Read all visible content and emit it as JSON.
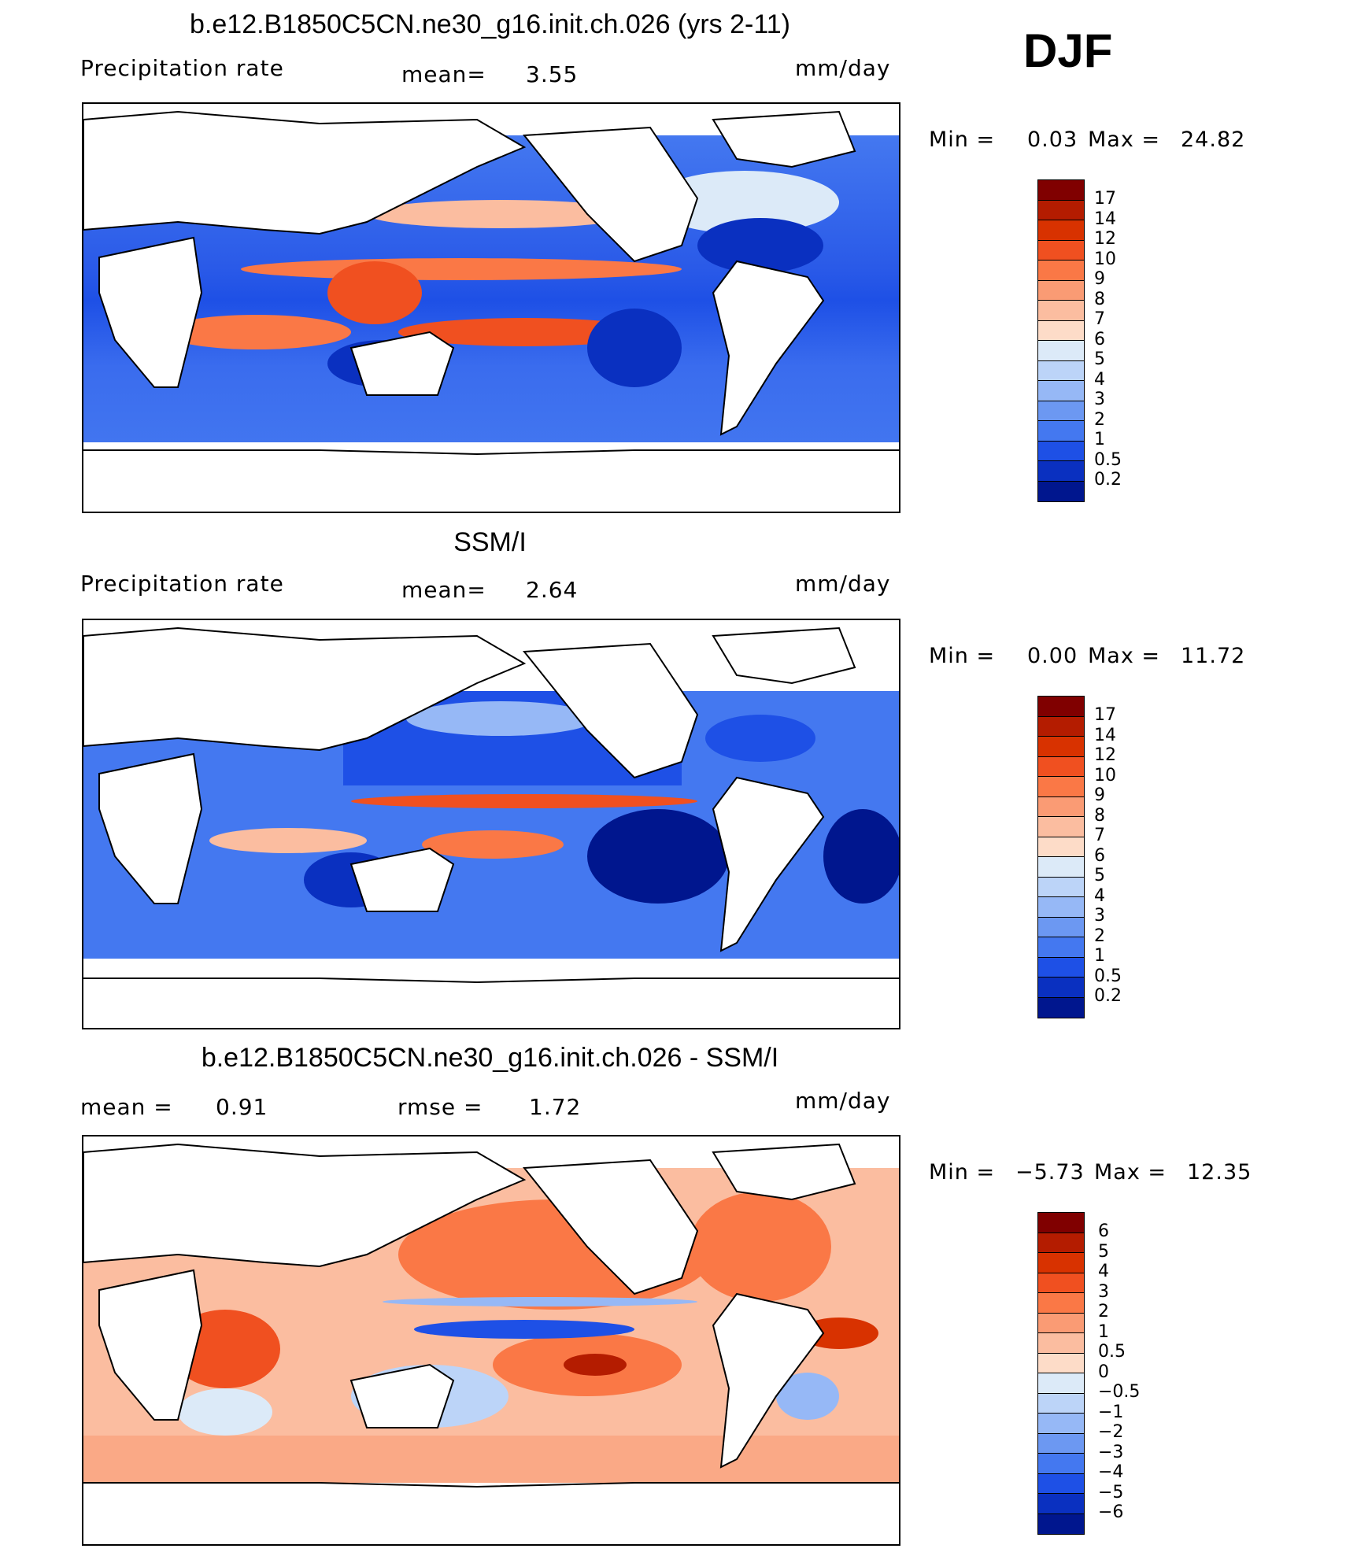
{
  "season": "DJF",
  "panels": [
    {
      "title": "b.e12.B1850C5CN.ne30_g16.init.ch.026 (yrs 2-11)",
      "left_label": "Precipitation  rate",
      "mean_label": "mean=",
      "mean_value": "3.55",
      "units": "mm/day",
      "min_label": "Min  =",
      "min_value": "0.03",
      "max_label": "Max  =",
      "max_value": "24.82",
      "colorbar": {
        "labels": [
          "17",
          "14",
          "12",
          "10",
          "9",
          "8",
          "7",
          "6",
          "5",
          "4",
          "3",
          "2",
          "1",
          "0.5",
          "0.2"
        ],
        "colors": [
          "#800000",
          "#b41c00",
          "#d83200",
          "#f05020",
          "#fa7846",
          "#fa9b74",
          "#fbbda0",
          "#fddcc8",
          "#dceaf8",
          "#bcd4f8",
          "#96b8f6",
          "#6c98f2",
          "#4478f0",
          "#1e50e6",
          "#0a30c0",
          "#00168e"
        ]
      }
    },
    {
      "title": "SSM/I",
      "left_label": "Precipitation  rate",
      "mean_label": "mean=",
      "mean_value": "2.64",
      "units": "mm/day",
      "min_label": "Min  =",
      "min_value": "0.00",
      "max_label": "Max  =",
      "max_value": "11.72",
      "colorbar": {
        "labels": [
          "17",
          "14",
          "12",
          "10",
          "9",
          "8",
          "7",
          "6",
          "5",
          "4",
          "3",
          "2",
          "1",
          "0.5",
          "0.2"
        ],
        "colors": [
          "#800000",
          "#b41c00",
          "#d83200",
          "#f05020",
          "#fa7846",
          "#fa9b74",
          "#fbbda0",
          "#fddcc8",
          "#dceaf8",
          "#bcd4f8",
          "#96b8f6",
          "#6c98f2",
          "#4478f0",
          "#1e50e6",
          "#0a30c0",
          "#00168e"
        ]
      }
    },
    {
      "title": "b.e12.B1850C5CN.ne30_g16.init.ch.026 - SSM/I",
      "left_label": "mean  =",
      "mean_value": "0.91",
      "rmse_label": "rmse  =",
      "rmse_value": "1.72",
      "units": "mm/day",
      "min_label": "Min  =",
      "min_value": "−5.73",
      "max_label": "Max  =",
      "max_value": "12.35",
      "colorbar": {
        "labels": [
          "6",
          "5",
          "4",
          "3",
          "2",
          "1",
          "0.5",
          "0",
          "−0.5",
          "−1",
          "−2",
          "−3",
          "−4",
          "−5",
          "−6"
        ],
        "colors": [
          "#800000",
          "#b41c00",
          "#d83200",
          "#f05020",
          "#fa7846",
          "#fa9b74",
          "#fbbda0",
          "#fddcc8",
          "#dceaf8",
          "#bcd4f8",
          "#96b8f6",
          "#6c98f2",
          "#4478f0",
          "#1e50e6",
          "#0a30c0",
          "#00168e"
        ]
      }
    }
  ]
}
